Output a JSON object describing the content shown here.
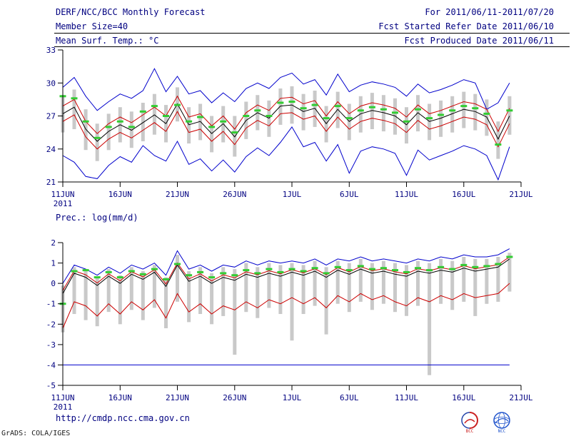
{
  "header": {
    "title": "DERF/NCC/BCC Monthly Forecast",
    "for_range": "For 2011/06/11-2011/07/20",
    "member_size": "Member Size=40",
    "fcst_started": "Fcst Started Refer Date 2011/06/10",
    "fcst_produced": "Fcst Produced Date 2011/06/11"
  },
  "footer": {
    "url": "http://cmdp.ncc.cma.gov.cn",
    "grads_credit": "GrADS: COLA/IGES",
    "bcc_label": "BCC",
    "ncc_label": "NCC"
  },
  "colors": {
    "text": "#000080",
    "axis": "#000000",
    "spread_bar": "#c9c9c9",
    "envelope_line": "#0000cc",
    "quartile_line": "#cc0000",
    "mean_line": "#000000",
    "marker": "#33cc33"
  },
  "chart_data": [
    {
      "type": "line",
      "title": "Mean Surf. Temp.: °C",
      "xlabel": "",
      "ylabel": "°C",
      "ylim": [
        21,
        33
      ],
      "yticks": [
        21,
        24,
        27,
        30,
        33
      ],
      "x_count": 40,
      "x_tick_positions": [
        0,
        5,
        10,
        15,
        20,
        25,
        30,
        35,
        40
      ],
      "x_tick_labels": [
        "11JUN",
        "16JUN",
        "21JUN",
        "26JUN",
        "1JUL",
        "6JUL",
        "11JUL",
        "16JUL",
        "21JUL"
      ],
      "x_axis_year": "2011",
      "grid": false,
      "legend": "none",
      "series": [
        {
          "name": "spread-bars",
          "type": "bar-range",
          "color": "#c9c9c9",
          "low": [
            25.5,
            25.8,
            23.9,
            22.9,
            23.9,
            24.6,
            24.1,
            24.7,
            25.3,
            24.6,
            26.5,
            24.5,
            24.8,
            23.7,
            24.6,
            23.3,
            24.9,
            25.7,
            25.1,
            26.2,
            26.3,
            25.7,
            26.0,
            24.6,
            25.9,
            24.8,
            25.5,
            25.8,
            25.6,
            25.3,
            24.5,
            25.6,
            24.8,
            25.1,
            25.5,
            25.9,
            25.7,
            25.2,
            23.1,
            25.3
          ],
          "high": [
            28.9,
            29.4,
            27.6,
            26.3,
            27.2,
            27.8,
            27.4,
            28.2,
            29.0,
            28.0,
            29.6,
            27.8,
            28.1,
            27.0,
            27.9,
            27.0,
            28.3,
            28.9,
            28.4,
            29.5,
            29.7,
            29.0,
            29.3,
            27.9,
            29.2,
            28.1,
            28.8,
            29.1,
            28.9,
            28.6,
            27.8,
            28.9,
            28.1,
            28.4,
            28.8,
            29.2,
            29.0,
            28.5,
            26.5,
            28.8
          ]
        },
        {
          "name": "blue-upper-envelope",
          "type": "line",
          "color": "#0000cc",
          "values": [
            29.6,
            30.5,
            28.8,
            27.5,
            28.3,
            29.0,
            28.6,
            29.3,
            31.3,
            29.2,
            30.6,
            29.0,
            29.3,
            28.2,
            29.1,
            28.3,
            29.5,
            30.0,
            29.5,
            30.5,
            30.9,
            29.9,
            30.3,
            28.9,
            30.8,
            29.2,
            29.8,
            30.1,
            29.9,
            29.6,
            28.8,
            29.9,
            29.1,
            29.4,
            29.8,
            30.3,
            30.0,
            27.6,
            28.2,
            30.0
          ]
        },
        {
          "name": "blue-lower-envelope",
          "type": "line",
          "color": "#0000cc",
          "values": [
            23.4,
            22.8,
            21.5,
            21.3,
            22.5,
            23.3,
            22.8,
            24.3,
            23.4,
            22.9,
            24.7,
            22.6,
            23.1,
            22.0,
            23.0,
            21.9,
            23.3,
            24.1,
            23.4,
            24.6,
            26.0,
            24.2,
            24.6,
            22.9,
            24.4,
            21.8,
            23.8,
            24.2,
            24.0,
            23.6,
            21.6,
            23.9,
            23.0,
            23.4,
            23.8,
            24.3,
            24.0,
            23.4,
            21.2,
            24.2
          ]
        },
        {
          "name": "red-upper",
          "type": "line",
          "color": "#cc0000",
          "values": [
            27.9,
            28.5,
            26.5,
            25.4,
            26.3,
            26.9,
            26.4,
            27.1,
            27.8,
            27.0,
            28.8,
            26.9,
            27.2,
            26.1,
            27.0,
            25.8,
            27.3,
            28.0,
            27.5,
            28.6,
            28.7,
            28.1,
            28.4,
            27.0,
            28.3,
            27.2,
            27.9,
            28.2,
            28.0,
            27.7,
            26.9,
            28.0,
            27.2,
            27.5,
            27.9,
            28.3,
            28.1,
            27.6,
            25.6,
            27.7
          ]
        },
        {
          "name": "red-lower",
          "type": "line",
          "color": "#cc0000",
          "values": [
            26.5,
            27.1,
            25.1,
            24.0,
            24.9,
            25.5,
            25.0,
            25.7,
            26.4,
            25.6,
            27.4,
            25.5,
            25.8,
            24.7,
            25.6,
            24.4,
            25.9,
            26.6,
            26.1,
            27.2,
            27.3,
            26.7,
            27.0,
            25.6,
            26.9,
            25.8,
            26.5,
            26.8,
            26.6,
            26.3,
            25.5,
            26.6,
            25.8,
            26.1,
            26.5,
            26.9,
            26.7,
            26.2,
            24.2,
            26.3
          ]
        },
        {
          "name": "ensemble-mean",
          "type": "line",
          "color": "#000000",
          "values": [
            27.2,
            27.8,
            25.8,
            24.7,
            25.6,
            26.2,
            25.7,
            26.4,
            27.1,
            26.3,
            28.1,
            26.2,
            26.5,
            25.4,
            26.3,
            25.1,
            26.6,
            27.3,
            26.8,
            27.9,
            28.0,
            27.4,
            27.7,
            26.3,
            27.6,
            26.5,
            27.2,
            27.5,
            27.3,
            27.0,
            26.2,
            27.3,
            26.5,
            26.8,
            27.2,
            27.6,
            27.4,
            26.9,
            24.9,
            27.0
          ]
        },
        {
          "name": "green-dash-marker",
          "type": "dash-marker",
          "color": "#33cc33",
          "values": [
            28.8,
            28.6,
            26.5,
            25.0,
            26.0,
            26.5,
            26.0,
            27.4,
            27.9,
            27.0,
            28.0,
            26.5,
            26.9,
            26.0,
            26.5,
            25.5,
            27.0,
            27.5,
            27.0,
            28.2,
            28.3,
            27.7,
            28.0,
            26.8,
            27.9,
            26.8,
            27.5,
            27.8,
            27.6,
            27.3,
            26.5,
            27.6,
            26.8,
            27.1,
            27.5,
            27.9,
            27.7,
            27.2,
            24.4,
            27.5
          ]
        }
      ]
    },
    {
      "type": "line",
      "title": "Prec.: log(mm/d)",
      "xlabel": "",
      "ylabel": "log(mm/d)",
      "ylim": [
        -5,
        2
      ],
      "yticks": [
        -5,
        -4,
        -3,
        -2,
        -1,
        0,
        1,
        2
      ],
      "x_count": 40,
      "x_tick_positions": [
        0,
        5,
        10,
        15,
        20,
        25,
        30,
        35,
        40
      ],
      "x_tick_labels": [
        "11JUN",
        "16JUN",
        "21JUN",
        "26JUN",
        "1JUL",
        "6JUL",
        "11JUL",
        "16JUL",
        "21JUL"
      ],
      "x_axis_year": "2011",
      "grid": false,
      "legend": "none",
      "series": [
        {
          "name": "spread-bars",
          "type": "bar-range",
          "color": "#c9c9c9",
          "low": [
            -2.4,
            -1.5,
            -1.8,
            -2.1,
            -1.4,
            -2.0,
            -1.3,
            -1.8,
            -1.2,
            -2.2,
            -0.9,
            -1.9,
            -1.5,
            -2.0,
            -1.6,
            -3.5,
            -1.4,
            -1.7,
            -1.2,
            -1.5,
            -2.8,
            -1.5,
            -1.1,
            -2.5,
            -1.0,
            -1.4,
            -0.9,
            -1.3,
            -1.0,
            -1.4,
            -1.6,
            -1.1,
            -4.5,
            -1.0,
            -1.3,
            -0.9,
            -1.6,
            -1.0,
            -0.9,
            -0.4
          ],
          "high": [
            -0.1,
            0.8,
            0.6,
            0.3,
            0.7,
            0.4,
            0.8,
            0.6,
            0.9,
            0.3,
            1.4,
            0.6,
            0.8,
            0.5,
            0.8,
            0.7,
            1.0,
            0.8,
            1.0,
            0.9,
            1.0,
            0.9,
            1.1,
            0.8,
            1.1,
            1.0,
            1.2,
            1.0,
            1.1,
            1.0,
            0.9,
            1.1,
            1.0,
            1.2,
            1.1,
            1.3,
            1.2,
            1.2,
            1.3,
            1.5
          ]
        },
        {
          "name": "blue-upper-envelope",
          "type": "line",
          "color": "#0000cc",
          "values": [
            0.0,
            0.9,
            0.7,
            0.4,
            0.8,
            0.5,
            0.9,
            0.7,
            1.0,
            0.4,
            1.6,
            0.7,
            0.9,
            0.6,
            0.9,
            0.8,
            1.1,
            0.9,
            1.1,
            1.0,
            1.1,
            1.0,
            1.2,
            0.9,
            1.2,
            1.1,
            1.3,
            1.1,
            1.2,
            1.1,
            1.0,
            1.2,
            1.1,
            1.3,
            1.2,
            1.4,
            1.3,
            1.3,
            1.4,
            1.7
          ]
        },
        {
          "name": "blue-lower-envelope",
          "type": "line",
          "color": "#0000cc",
          "values": [
            -4,
            -4,
            -4,
            -4,
            -4,
            -4,
            -4,
            -4,
            -4,
            -4,
            -4,
            -4,
            -4,
            -4,
            -4,
            -4,
            -4,
            -4,
            -4,
            -4,
            -4,
            -4,
            -4,
            -4,
            -4,
            -4,
            -4,
            -4,
            -4,
            -4,
            -4,
            -4,
            -4,
            -4,
            -4,
            -4,
            -4,
            -4,
            -4,
            -4
          ]
        },
        {
          "name": "red-upper",
          "type": "line",
          "color": "#cc0000",
          "values": [
            -0.35,
            0.62,
            0.42,
            0.02,
            0.47,
            0.12,
            0.57,
            0.32,
            0.67,
            -0.03,
            1.0,
            0.22,
            0.47,
            0.12,
            0.42,
            0.27,
            0.57,
            0.42,
            0.62,
            0.47,
            0.67,
            0.52,
            0.72,
            0.42,
            0.77,
            0.57,
            0.82,
            0.62,
            0.72,
            0.57,
            0.47,
            0.72,
            0.62,
            0.77,
            0.67,
            0.87,
            0.72,
            0.82,
            0.92,
            1.3
          ]
        },
        {
          "name": "red-lower",
          "type": "line",
          "color": "#cc0000",
          "values": [
            -2.2,
            -0.9,
            -1.1,
            -1.6,
            -1.0,
            -1.5,
            -0.9,
            -1.3,
            -0.8,
            -1.7,
            -0.5,
            -1.4,
            -1.0,
            -1.5,
            -1.1,
            -1.3,
            -0.9,
            -1.2,
            -0.8,
            -1.0,
            -0.7,
            -1.0,
            -0.7,
            -1.2,
            -0.6,
            -0.9,
            -0.5,
            -0.8,
            -0.6,
            -0.9,
            -1.1,
            -0.7,
            -0.9,
            -0.6,
            -0.8,
            -0.5,
            -0.7,
            -0.6,
            -0.5,
            0.0
          ]
        },
        {
          "name": "ensemble-mean",
          "type": "line",
          "color": "#000000",
          "values": [
            -0.5,
            0.5,
            0.3,
            -0.1,
            0.35,
            0.0,
            0.45,
            0.2,
            0.55,
            -0.15,
            0.9,
            0.1,
            0.35,
            0.0,
            0.3,
            0.15,
            0.45,
            0.3,
            0.5,
            0.35,
            0.55,
            0.4,
            0.6,
            0.3,
            0.65,
            0.45,
            0.7,
            0.5,
            0.6,
            0.45,
            0.35,
            0.6,
            0.5,
            0.65,
            0.55,
            0.75,
            0.6,
            0.7,
            0.8,
            1.2
          ]
        },
        {
          "name": "green-dash-marker",
          "type": "dash-marker",
          "color": "#33cc33",
          "values": [
            -1.0,
            0.6,
            0.65,
            0.3,
            0.55,
            0.3,
            0.6,
            0.45,
            0.7,
            0.2,
            0.95,
            0.4,
            0.55,
            0.3,
            0.5,
            0.4,
            0.65,
            0.5,
            0.7,
            0.55,
            0.7,
            0.6,
            0.75,
            0.5,
            0.8,
            0.65,
            0.85,
            0.7,
            0.75,
            0.65,
            0.55,
            0.75,
            0.65,
            0.8,
            0.7,
            0.9,
            0.8,
            0.85,
            0.95,
            1.3
          ]
        }
      ]
    }
  ]
}
